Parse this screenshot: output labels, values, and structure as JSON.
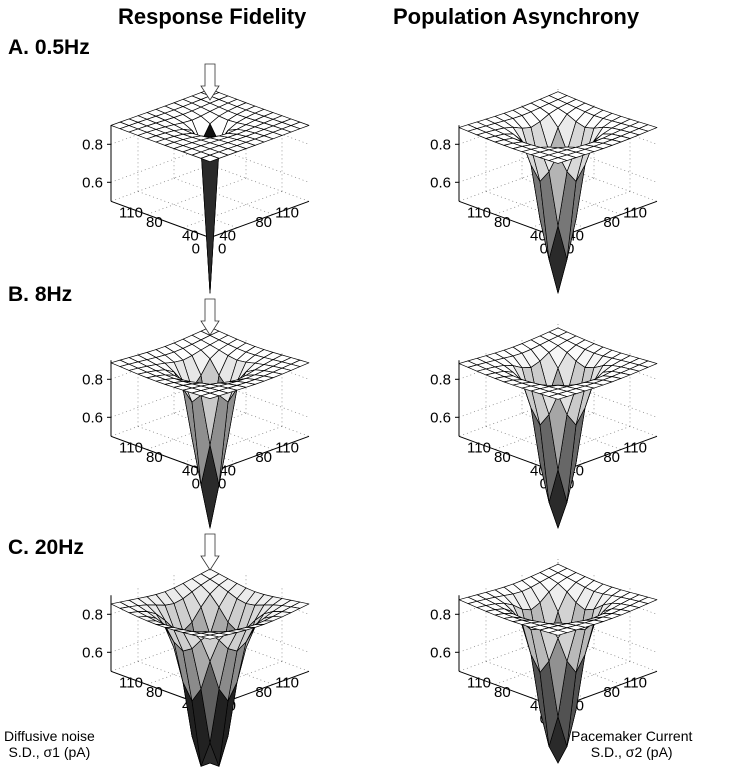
{
  "columns": [
    "Response Fidelity",
    "Population Asynchrony"
  ],
  "rows": [
    "A. 0.5Hz",
    "B.  8Hz",
    "C. 20Hz"
  ],
  "axis_titles": {
    "sigma1": [
      "Diffusive noise",
      "S.D., σ1 (pA)"
    ],
    "sigma2": [
      "Pacemaker Current",
      "S.D., σ2 (pA)"
    ]
  },
  "chart_data": [
    {
      "type": "surface",
      "panel": "A",
      "column": "Response Fidelity",
      "frequency_hz": 0.5,
      "x_label": "Diffusive noise S.D., σ1 (pA)",
      "y_label": "Pacemaker Current S.D., σ2 (pA)",
      "x_ticks": [
        "0",
        "40",
        "80",
        "110"
      ],
      "y_ticks": [
        "0",
        "40",
        "80",
        "110"
      ],
      "z_ticks": [
        "0.6",
        "0.8"
      ],
      "x_range": [
        0,
        110
      ],
      "y_range": [
        0,
        110
      ],
      "approx_peak": 0.9,
      "approx_min": 0.0,
      "arrow_marker": true
    },
    {
      "type": "surface",
      "panel": "A",
      "column": "Population Asynchrony",
      "frequency_hz": 0.5,
      "x_label": "Diffusive noise S.D., σ1 (pA)",
      "y_label": "Pacemaker Current S.D., σ2 (pA)",
      "x_ticks": [
        "0",
        "40",
        "80",
        "110"
      ],
      "y_ticks": [
        "0",
        "40",
        "80",
        "110"
      ],
      "z_ticks": [
        "0.6",
        "0.8"
      ],
      "x_range": [
        0,
        110
      ],
      "y_range": [
        0,
        110
      ],
      "approx_peak": 0.9,
      "approx_min": 0.0,
      "arrow_marker": false
    },
    {
      "type": "surface",
      "panel": "B",
      "column": "Response Fidelity",
      "frequency_hz": 8,
      "x_label": "Diffusive noise S.D., σ1 (pA)",
      "y_label": "Pacemaker Current S.D., σ2 (pA)",
      "x_ticks": [
        "0",
        "40",
        "80",
        "110"
      ],
      "y_ticks": [
        "0",
        "40",
        "80",
        "110"
      ],
      "z_ticks": [
        "0.6",
        "0.8"
      ],
      "x_range": [
        0,
        110
      ],
      "y_range": [
        0,
        110
      ],
      "approx_peak": 0.9,
      "approx_min": 0.0,
      "arrow_marker": true
    },
    {
      "type": "surface",
      "panel": "B",
      "column": "Population Asynchrony",
      "frequency_hz": 8,
      "x_label": "Diffusive noise S.D., σ1 (pA)",
      "y_label": "Pacemaker Current S.D., σ2 (pA)",
      "x_ticks": [
        "0",
        "40",
        "80",
        "110"
      ],
      "y_ticks": [
        "0",
        "40",
        "80",
        "110"
      ],
      "z_ticks": [
        "0.6",
        "0.8"
      ],
      "x_range": [
        0,
        110
      ],
      "y_range": [
        0,
        110
      ],
      "approx_peak": 0.9,
      "approx_min": 0.0,
      "arrow_marker": false
    },
    {
      "type": "surface",
      "panel": "C",
      "column": "Response Fidelity",
      "frequency_hz": 20,
      "x_label": "Diffusive noise S.D., σ1 (pA)",
      "y_label": "Pacemaker Current S.D., σ2 (pA)",
      "x_ticks": [
        "0",
        "40",
        "80",
        "110"
      ],
      "y_ticks": [
        "0",
        "40",
        "80",
        "110"
      ],
      "z_ticks": [
        "0.6",
        "0.8"
      ],
      "x_range": [
        0,
        110
      ],
      "y_range": [
        0,
        110
      ],
      "approx_peak": 0.9,
      "approx_min": 0.0,
      "arrow_marker": true
    },
    {
      "type": "surface",
      "panel": "C",
      "column": "Population Asynchrony",
      "frequency_hz": 20,
      "x_label": "Diffusive noise S.D., σ1 (pA)",
      "y_label": "Pacemaker Current S.D., σ2 (pA)",
      "x_ticks": [
        "0",
        "40",
        "80",
        "110"
      ],
      "y_ticks": [
        "0",
        "40",
        "80",
        "110"
      ],
      "z_ticks": [
        "0.6",
        "0.8"
      ],
      "x_range": [
        0,
        110
      ],
      "y_range": [
        0,
        110
      ],
      "approx_peak": 0.9,
      "approx_min": 0.0,
      "arrow_marker": false
    }
  ]
}
